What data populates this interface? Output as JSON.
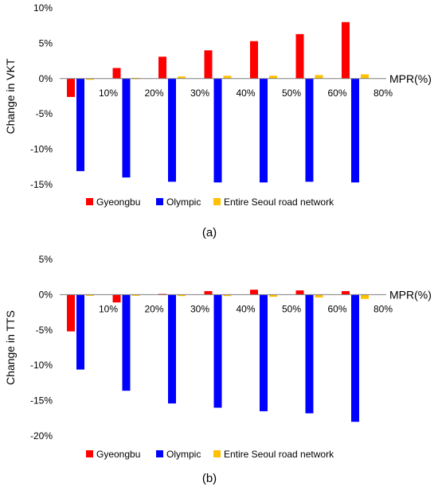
{
  "chart_data": [
    {
      "type": "bar",
      "panel_label": "(a)",
      "ylabel": "Change in VKT",
      "xlabel": "MPR(%)",
      "categories": [
        "10%",
        "20%",
        "30%",
        "40%",
        "50%",
        "60%",
        "80%"
      ],
      "ylim": [
        -15,
        10
      ],
      "yticks": [
        -15,
        -10,
        -5,
        0,
        5,
        10
      ],
      "ytick_labels": [
        "-15%",
        "-10%",
        "-5%",
        "0%",
        "5%",
        "10%"
      ],
      "grid": false,
      "legend": "bottom",
      "series": [
        {
          "name": "Gyeongbu",
          "color": "#ff0000",
          "values": [
            -2.6,
            1.5,
            3.1,
            4.0,
            5.3,
            6.3,
            8.0
          ]
        },
        {
          "name": "Olympic",
          "color": "#0000ff",
          "values": [
            -13.1,
            -14.0,
            -14.6,
            -14.7,
            -14.7,
            -14.6,
            -14.7
          ]
        },
        {
          "name": "Entire Seoul road network",
          "color": "#ffc000",
          "values": [
            0.0,
            0.1,
            0.3,
            0.4,
            0.4,
            0.5,
            0.6
          ]
        }
      ]
    },
    {
      "type": "bar",
      "panel_label": "(b)",
      "ylabel": "Change in TTS",
      "xlabel": "MPR(%)",
      "categories": [
        "10%",
        "20%",
        "30%",
        "40%",
        "50%",
        "60%",
        "80%"
      ],
      "ylim": [
        -20,
        5
      ],
      "yticks": [
        -20,
        -15,
        -10,
        -5,
        0,
        5
      ],
      "ytick_labels": [
        "-20%",
        "-15%",
        "-10%",
        "-5%",
        "0%",
        "5%"
      ],
      "grid": false,
      "legend": "bottom",
      "series": [
        {
          "name": "Gyeongbu",
          "color": "#ff0000",
          "values": [
            -5.2,
            -1.1,
            0.1,
            0.5,
            0.7,
            0.6,
            0.5
          ]
        },
        {
          "name": "Olympic",
          "color": "#0000ff",
          "values": [
            -10.6,
            -13.6,
            -15.4,
            -16.0,
            -16.5,
            -16.8,
            -18.0
          ]
        },
        {
          "name": "Entire Seoul road network",
          "color": "#ffc000",
          "values": [
            -0.1,
            -0.1,
            -0.2,
            -0.2,
            -0.3,
            -0.4,
            -0.6
          ]
        }
      ]
    }
  ]
}
